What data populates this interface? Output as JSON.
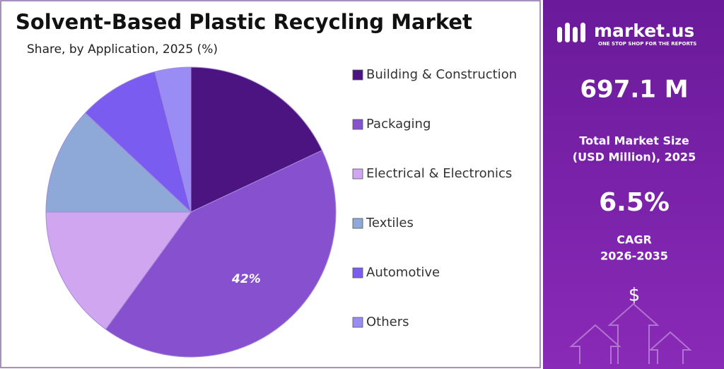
{
  "chart_data": {
    "type": "pie",
    "title": "Solvent-Based Plastic Recycling Market",
    "subtitle": "Share, by Application, 2025 (%)",
    "categories": [
      "Building & Construction",
      "Packaging",
      "Electrical & Electronics",
      "Textiles",
      "Automotive",
      "Others"
    ],
    "values": [
      18,
      42,
      15,
      12,
      9,
      4
    ],
    "value_labels": [
      null,
      "42%",
      null,
      null,
      null,
      null
    ],
    "colors": [
      "#4b1480",
      "#8750cf",
      "#cfa6ef",
      "#8ea8d8",
      "#7a5cf0",
      "#9a8cf5"
    ],
    "legend": "right"
  },
  "panel": {
    "brand": "market.us",
    "tagline": "ONE STOP SHOP FOR THE REPORTS",
    "market_size": "697.1 M",
    "market_size_label": [
      "Total Market Size",
      "(USD Million), 2025"
    ],
    "cagr": "6.5%",
    "cagr_label": [
      "CAGR",
      "2026-2035"
    ]
  }
}
